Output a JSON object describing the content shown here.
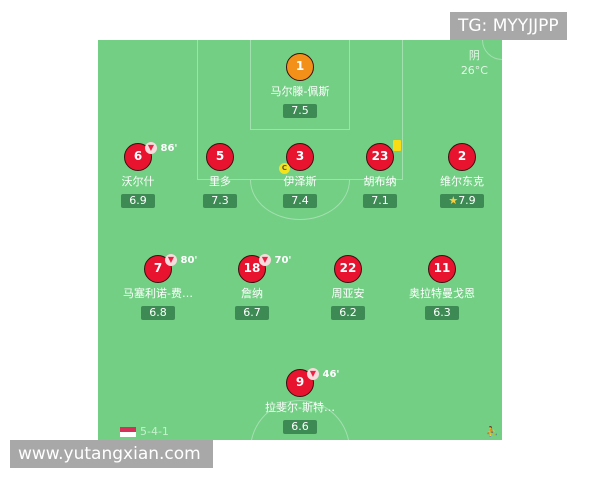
{
  "weather": {
    "condition": "阴",
    "temperature": "26°C"
  },
  "formation": "5-4-1",
  "players": [
    {
      "number": "1",
      "name": "马尔滕-佩斯",
      "rating": "7.5",
      "gk": true
    },
    {
      "number": "6",
      "name": "沃尔什",
      "rating": "6.9",
      "sub_minute": "86'"
    },
    {
      "number": "5",
      "name": "里多",
      "rating": "7.3"
    },
    {
      "number": "3",
      "name": "伊泽斯",
      "rating": "7.4",
      "captain": "C"
    },
    {
      "number": "23",
      "name": "胡布纳",
      "rating": "7.1",
      "yellow_card": true
    },
    {
      "number": "2",
      "name": "维尔东克",
      "rating": "7.9",
      "star": true
    },
    {
      "number": "7",
      "name": "马塞利诺-费…",
      "rating": "6.8",
      "sub_minute": "80'"
    },
    {
      "number": "18",
      "name": "詹纳",
      "rating": "6.7",
      "sub_minute": "70'"
    },
    {
      "number": "22",
      "name": "周亚安",
      "rating": "6.2"
    },
    {
      "number": "11",
      "name": "奥拉特曼戈恩",
      "rating": "6.3"
    },
    {
      "number": "9",
      "name": "拉斐尔-斯特…",
      "rating": "6.6",
      "sub_minute": "46'"
    }
  ],
  "colors": {
    "pitch": "#72cf84",
    "player": "#e8132f",
    "goalkeeper": "#f39019",
    "rating_bg": "#3e8a54"
  },
  "watermarks": {
    "top": "TG: MYYJJPP",
    "bottom": "www.yutangxian.com"
  }
}
